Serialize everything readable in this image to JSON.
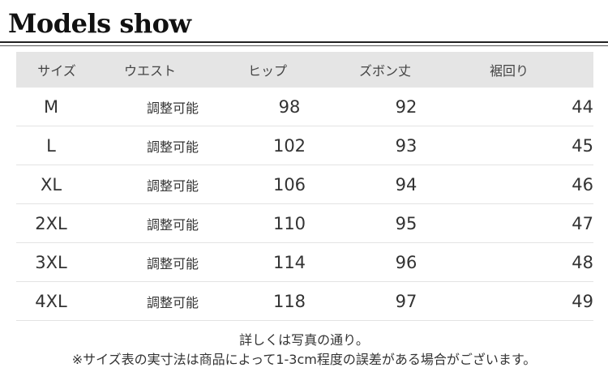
{
  "page": {
    "title": "Models show"
  },
  "table": {
    "headers": [
      "サイズ",
      "ウエスト",
      "ヒップ",
      "ズボン丈",
      "裾回り"
    ],
    "rows": [
      {
        "size": "M",
        "waist": "調整可能",
        "hip": "98",
        "length": "92",
        "hem": "44"
      },
      {
        "size": "L",
        "waist": "調整可能",
        "hip": "102",
        "length": "93",
        "hem": "45"
      },
      {
        "size": "XL",
        "waist": "調整可能",
        "hip": "106",
        "length": "94",
        "hem": "46"
      },
      {
        "size": "2XL",
        "waist": "調整可能",
        "hip": "110",
        "length": "95",
        "hem": "47"
      },
      {
        "size": "3XL",
        "waist": "調整可能",
        "hip": "114",
        "length": "96",
        "hem": "48"
      },
      {
        "size": "4XL",
        "waist": "調整可能",
        "hip": "118",
        "length": "97",
        "hem": "49"
      }
    ]
  },
  "notes": {
    "line1": "詳しくは写真の通り。",
    "line2": "※サイズ表の実寸法は商品によって1-3cm程度の誤差がある場合がございます。"
  },
  "colors": {
    "header_bg": "#e5e5e5",
    "title": "#111111",
    "text": "#333333"
  }
}
